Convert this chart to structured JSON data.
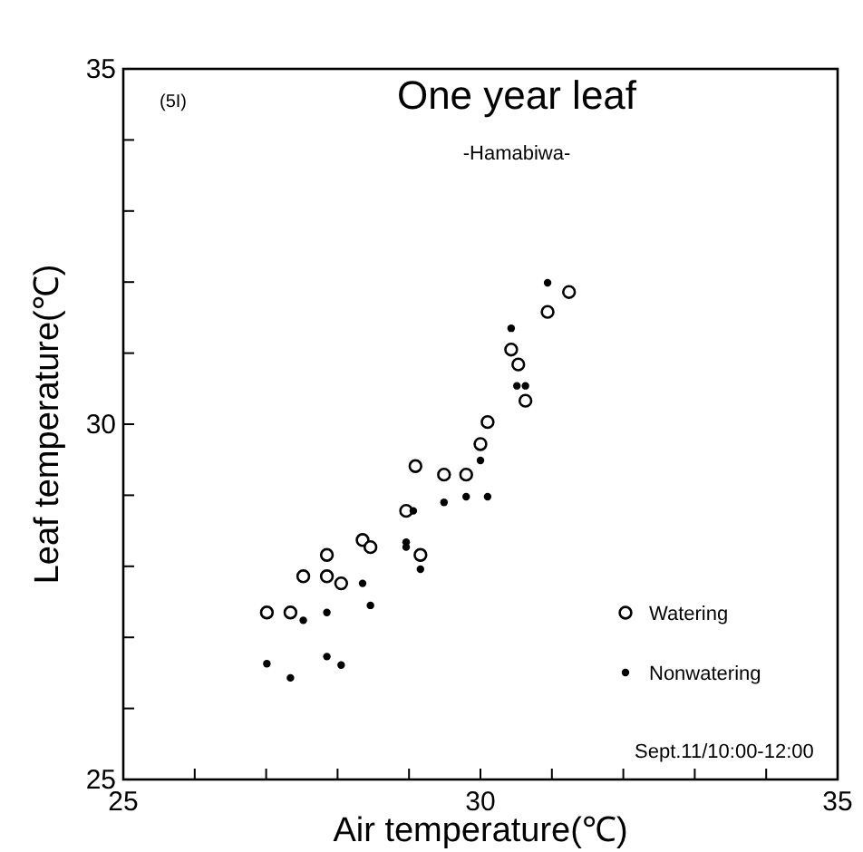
{
  "chart_data": {
    "type": "scatter",
    "title": "One year leaf",
    "subtitle": "-Hamabiwa-",
    "xlabel": "Air temperature(℃)",
    "ylabel": "Leaf temperature(℃)",
    "annotations": [
      "(5I)",
      "Sept.11/10:00-12:00"
    ],
    "xlim": [
      25,
      35
    ],
    "ylim": [
      25,
      35
    ],
    "xticks": [
      25,
      {
        "value": 26,
        "label": null
      },
      {
        "value": 27,
        "label": null
      },
      {
        "value": 28,
        "label": null
      },
      {
        "value": 29,
        "label": null
      },
      30,
      {
        "value": 31,
        "label": null
      },
      {
        "value": 32,
        "label": null
      },
      {
        "value": 33,
        "label": null
      },
      {
        "value": 34,
        "label": null
      },
      35
    ],
    "yticks": [
      25,
      {
        "value": 26,
        "label": null
      },
      {
        "value": 27,
        "label": null
      },
      {
        "value": 28,
        "label": null
      },
      {
        "value": 29,
        "label": null
      },
      30,
      {
        "value": 31,
        "label": null
      },
      {
        "value": 32,
        "label": null
      },
      {
        "value": 33,
        "label": null
      },
      {
        "value": 34,
        "label": null
      },
      35
    ],
    "grid": false,
    "legend": "bottom right",
    "marker": "circle",
    "series": [
      {
        "name": "Watering",
        "color": "#ffffff",
        "x": [
          31.24,
          30.94,
          30.43,
          30.53,
          30.63,
          30.1,
          30.0,
          29.09,
          29.49,
          29.8,
          28.96,
          27.01,
          27.34,
          27.52,
          27.85,
          27.85,
          28.05,
          28.35,
          28.46,
          29.16
        ],
        "values": [
          31.86,
          31.58,
          31.05,
          30.84,
          30.33,
          30.03,
          29.72,
          29.41,
          29.29,
          29.29,
          28.78,
          27.35,
          27.35,
          27.86,
          28.16,
          27.86,
          27.76,
          28.37,
          28.27,
          28.16
        ]
      },
      {
        "name": "Nonwatering",
        "color": "#000000",
        "x": [
          30.94,
          30.43,
          30.51,
          30.63,
          30.0,
          29.49,
          29.8,
          30.1,
          29.06,
          28.96,
          28.96,
          29.16,
          28.35,
          28.46,
          27.01,
          27.34,
          27.52,
          27.85,
          27.85,
          28.05
        ],
        "values": [
          31.99,
          31.35,
          30.54,
          30.54,
          29.49,
          28.9,
          28.98,
          28.98,
          28.78,
          28.34,
          28.27,
          27.96,
          27.76,
          27.45,
          26.63,
          26.43,
          27.24,
          27.35,
          26.73,
          26.61
        ]
      }
    ]
  }
}
